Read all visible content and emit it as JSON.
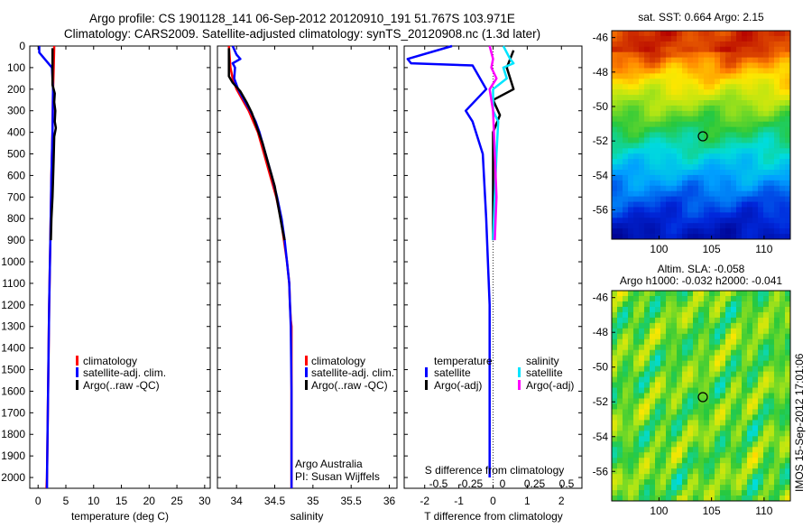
{
  "header": {
    "line1": "Argo profile: CS 1901128_141 06-Sep-2012 20120910_191 51.767S 103.971E",
    "line2": "Climatology: CARS2009. Satellite-adjusted climatology: synTS_20120908.nc (1.3d later)"
  },
  "side_stamp": "IMOS 15-Sep-2012 17:01:06",
  "depth_ticks": [
    0,
    100,
    200,
    300,
    400,
    500,
    600,
    700,
    800,
    900,
    1000,
    1100,
    1200,
    1300,
    1400,
    1500,
    1600,
    1700,
    1800,
    1900,
    2000
  ],
  "colors": {
    "climatology": "#ff0000",
    "satellite": "#0000ff",
    "argo": "#000000",
    "sal_satellite": "#00e5ff",
    "sal_argo": "#ff00ff"
  },
  "chart_data": [
    {
      "type": "line",
      "panel": "temperature",
      "xlabel": "temperature (deg C)",
      "xlim": [
        -1.5,
        31
      ],
      "xticks": [
        0,
        5,
        10,
        15,
        20,
        25,
        30
      ],
      "ylim": [
        2050,
        0
      ],
      "legend": {
        "placement": "center",
        "entries": [
          "climatology",
          "satellite-adj. clim.",
          "Argo(..raw -QC)"
        ]
      },
      "series": [
        {
          "name": "climatology",
          "color": "#ff0000",
          "points": [
            [
              2.9,
              0
            ],
            [
              2.8,
              100
            ],
            [
              2.7,
              200
            ],
            [
              2.6,
              400
            ],
            [
              2.4,
              600
            ],
            [
              2.2,
              900
            ],
            [
              2.0,
              1200
            ],
            [
              1.8,
              1600
            ],
            [
              1.6,
              2000
            ],
            [
              1.5,
              2050
            ]
          ]
        },
        {
          "name": "satellite-adj. clim.",
          "color": "#0000ff",
          "points": [
            [
              0.2,
              0
            ],
            [
              0.2,
              30
            ],
            [
              2.5,
              100
            ],
            [
              2.7,
              200
            ],
            [
              2.6,
              400
            ],
            [
              2.4,
              600
            ],
            [
              2.2,
              900
            ],
            [
              2.0,
              1200
            ],
            [
              1.8,
              1600
            ],
            [
              1.6,
              2000
            ],
            [
              1.6,
              2050
            ]
          ]
        },
        {
          "name": "Argo(..raw -QC)",
          "color": "#000000",
          "points": [
            [
              2.6,
              10
            ],
            [
              2.6,
              100
            ],
            [
              2.6,
              180
            ],
            [
              3.0,
              220
            ],
            [
              2.9,
              260
            ],
            [
              3.1,
              300
            ],
            [
              3.0,
              350
            ],
            [
              3.2,
              380
            ],
            [
              2.9,
              420
            ],
            [
              2.8,
              520
            ],
            [
              2.7,
              620
            ],
            [
              2.6,
              700
            ],
            [
              2.4,
              800
            ],
            [
              2.3,
              900
            ]
          ]
        }
      ]
    },
    {
      "type": "line",
      "panel": "salinity",
      "xlabel": "salinity",
      "xlim": [
        33.75,
        36.1
      ],
      "xticks": [
        34,
        34.5,
        35,
        35.5,
        36
      ],
      "ylim": [
        2050,
        0
      ],
      "legend": {
        "placement": "center",
        "entries": [
          "climatology",
          "satellite-adj. clim.",
          "Argo(..raw -QC)"
        ]
      },
      "annotation": [
        "Argo Australia",
        "PI: Susan Wijffels"
      ],
      "series": [
        {
          "name": "climatology",
          "color": "#ff0000",
          "points": [
            [
              33.9,
              0
            ],
            [
              33.92,
              100
            ],
            [
              33.95,
              150
            ],
            [
              34.0,
              200
            ],
            [
              34.08,
              250
            ],
            [
              34.16,
              300
            ],
            [
              34.22,
              350
            ],
            [
              34.28,
              400
            ],
            [
              34.36,
              500
            ],
            [
              34.44,
              600
            ],
            [
              34.52,
              700
            ],
            [
              34.58,
              800
            ],
            [
              34.62,
              900
            ],
            [
              34.66,
              1000
            ],
            [
              34.69,
              1100
            ],
            [
              34.7,
              1200
            ],
            [
              34.71,
              1270
            ],
            [
              34.72,
              1300
            ],
            [
              34.72,
              1600
            ],
            [
              34.72,
              2050
            ]
          ]
        },
        {
          "name": "satellite-adj. clim.",
          "color": "#0000ff",
          "points": [
            [
              33.95,
              0
            ],
            [
              34.0,
              40
            ],
            [
              34.05,
              60
            ],
            [
              33.95,
              80
            ],
            [
              33.98,
              100
            ],
            [
              33.97,
              150
            ],
            [
              34.02,
              200
            ],
            [
              34.1,
              250
            ],
            [
              34.18,
              300
            ],
            [
              34.25,
              350
            ],
            [
              34.3,
              400
            ],
            [
              34.38,
              500
            ],
            [
              34.46,
              600
            ],
            [
              34.53,
              700
            ],
            [
              34.59,
              800
            ],
            [
              34.63,
              900
            ],
            [
              34.66,
              1000
            ],
            [
              34.69,
              1100
            ],
            [
              34.7,
              1200
            ],
            [
              34.71,
              1300
            ],
            [
              34.72,
              1600
            ],
            [
              34.72,
              2050
            ]
          ]
        },
        {
          "name": "Argo(..raw -QC)",
          "color": "#000000",
          "points": [
            [
              33.9,
              10
            ],
            [
              33.9,
              100
            ],
            [
              33.9,
              140
            ],
            [
              33.95,
              170
            ],
            [
              34.05,
              210
            ],
            [
              34.13,
              260
            ],
            [
              34.2,
              310
            ],
            [
              34.27,
              380
            ],
            [
              34.34,
              450
            ],
            [
              34.42,
              550
            ],
            [
              34.5,
              650
            ],
            [
              34.55,
              750
            ],
            [
              34.6,
              850
            ],
            [
              34.63,
              900
            ]
          ]
        }
      ]
    },
    {
      "type": "line",
      "panel": "differences",
      "xlabel": "T difference from climatology",
      "xlim": [
        -2.6,
        2.6
      ],
      "xticks": [
        -2,
        -1,
        0,
        1,
        2
      ],
      "top_axis_label": "S difference from climatology",
      "top_ticks": [
        {
          "value": -0.5,
          "label": "-0.5"
        },
        {
          "value": -0.25,
          "label": "-0.25"
        },
        {
          "value": 0,
          "label": "0"
        },
        {
          "value": 0.25,
          "label": "0.25"
        },
        {
          "value": 0.5,
          "label": "0.5"
        }
      ],
      "ylim": [
        2050,
        0
      ],
      "legend": {
        "placement": "center",
        "groups": [
          {
            "title": "temperature",
            "entries": [
              "satellite",
              "Argo(-adj)"
            ]
          },
          {
            "title": "salinity",
            "entries": [
              "satellite",
              "Argo(-adj)"
            ]
          }
        ]
      },
      "series": [
        {
          "name": "temperature satellite",
          "color": "#0000ff",
          "points": [
            [
              -1.2,
              0
            ],
            [
              -2.5,
              60
            ],
            [
              -2.4,
              80
            ],
            [
              -0.6,
              90
            ],
            [
              -0.2,
              200
            ],
            [
              -0.8,
              300
            ],
            [
              -0.6,
              350
            ],
            [
              -0.3,
              500
            ],
            [
              -0.2,
              800
            ],
            [
              -0.1,
              1200
            ],
            [
              -0.1,
              2000
            ]
          ]
        },
        {
          "name": "temperature Argo(-adj)",
          "color": "#000000",
          "points": [
            [
              0.6,
              20
            ],
            [
              0.4,
              100
            ],
            [
              0.6,
              200
            ],
            [
              0.0,
              250
            ],
            [
              0.2,
              320
            ],
            [
              0.0,
              400
            ],
            [
              0.0,
              600
            ],
            [
              0.0,
              900
            ]
          ]
        },
        {
          "name": "salinity satellite",
          "color": "#00e5ff",
          "points": [
            [
              0.3,
              0
            ],
            [
              0.5,
              60
            ],
            [
              0.6,
              80
            ],
            [
              0.3,
              100
            ],
            [
              0.4,
              150
            ],
            [
              0.0,
              200
            ],
            [
              0.0,
              300
            ],
            [
              0.15,
              350
            ],
            [
              0.1,
              500
            ],
            [
              0.05,
              700
            ],
            [
              0.0,
              900
            ]
          ]
        },
        {
          "name": "salinity Argo(-adj)",
          "color": "#ff00ff",
          "points": [
            [
              -0.1,
              0
            ],
            [
              0.0,
              60
            ],
            [
              -0.05,
              100
            ],
            [
              0.1,
              150
            ],
            [
              -0.1,
              200
            ],
            [
              0.0,
              300
            ],
            [
              0.05,
              500
            ],
            [
              0.1,
              700
            ],
            [
              0.05,
              900
            ]
          ]
        }
      ]
    },
    {
      "type": "heatmap",
      "panel": "sst_map",
      "title": "sat. SST: 0.664  Argo: 2.15",
      "xticks": [
        100,
        105,
        110
      ],
      "yticks": [
        -46,
        -48,
        -50,
        -52,
        -54,
        -56
      ],
      "xlim": [
        95.5,
        112.5
      ],
      "ylim": [
        -57.7,
        -45.6
      ],
      "marker": {
        "lon": 103.97,
        "lat": -51.77
      }
    },
    {
      "type": "heatmap",
      "panel": "sla_map",
      "title": "Altim. SLA: -0.058",
      "subtitle": "Argo h1000: -0.032  h2000: -0.041",
      "xticks": [
        100,
        105,
        110
      ],
      "yticks": [
        -46,
        -48,
        -50,
        -52,
        -54,
        -56
      ],
      "xlim": [
        95.5,
        112.5
      ],
      "ylim": [
        -57.7,
        -45.6
      ],
      "marker": {
        "lon": 103.97,
        "lat": -51.77
      }
    }
  ]
}
